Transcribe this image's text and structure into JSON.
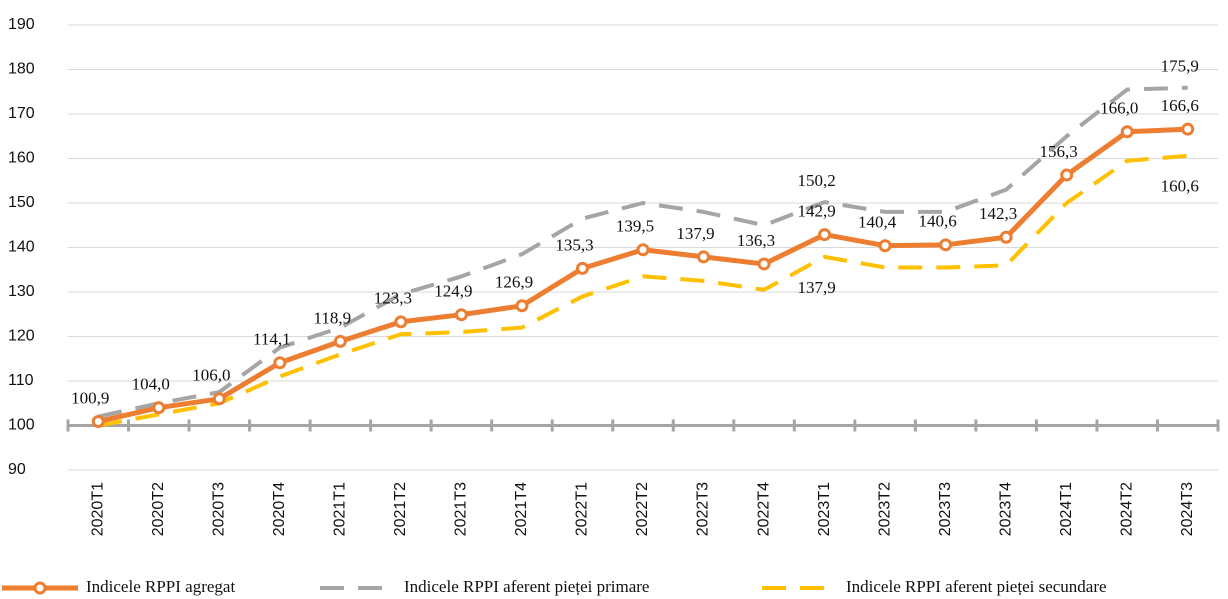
{
  "chart_data": {
    "type": "line",
    "categories": [
      "2020T1",
      "2020T2",
      "2020T3",
      "2020T4",
      "2021T1",
      "2021T2",
      "2021T3",
      "2021T4",
      "2022T1",
      "2022T2",
      "2022T3",
      "2022T4",
      "2023T1",
      "2023T2",
      "2023T3",
      "2023T4",
      "2024T1",
      "2024T2",
      "2024T3"
    ],
    "series": [
      {
        "name": "Indicele RPPI agregat",
        "color": "#ed7d31",
        "line_style": "solid",
        "marker": true,
        "values": [
          100.9,
          104.0,
          106.0,
          114.1,
          118.9,
          123.3,
          124.9,
          126.9,
          135.3,
          139.5,
          137.9,
          136.3,
          142.9,
          140.4,
          140.6,
          142.3,
          156.3,
          166.0,
          166.6
        ],
        "value_labels": [
          "100,9",
          "104,0",
          "106,0",
          "114,1",
          "118,9",
          "123,3",
          "124,9",
          "126,9",
          "135,3",
          "139,5",
          "137,9",
          "136,3",
          "142,9",
          "140,4",
          "140,6",
          "142,3",
          "156,3",
          "166,0",
          "166,6"
        ]
      },
      {
        "name": "Indicele RPPI aferent pieței primare",
        "color": "#a5a5a5",
        "line_style": "dashed",
        "marker": false,
        "values": [
          102,
          105,
          107.5,
          117.5,
          122,
          129.5,
          133.5,
          138.5,
          146.5,
          150,
          148,
          145,
          150.2,
          148,
          148,
          153,
          165,
          175.5,
          175.9
        ],
        "value_labels": [
          null,
          null,
          null,
          null,
          null,
          null,
          null,
          null,
          null,
          null,
          null,
          null,
          "150,2",
          null,
          null,
          null,
          null,
          null,
          "175,9"
        ]
      },
      {
        "name": "Indicele RPPI aferent pieței secundare",
        "color": "#ffc000",
        "line_style": "dashed",
        "marker": false,
        "values": [
          100,
          102.5,
          105,
          111,
          116,
          120.5,
          121,
          122,
          129,
          133.5,
          132.5,
          130.5,
          137.9,
          135.5,
          135.5,
          136,
          150,
          159.5,
          160.6
        ],
        "value_labels": [
          null,
          null,
          null,
          null,
          null,
          null,
          null,
          null,
          null,
          null,
          null,
          null,
          "137,9",
          null,
          null,
          null,
          null,
          null,
          "160,6"
        ]
      }
    ],
    "ylim": [
      90,
      190
    ],
    "yticks": [
      90,
      100,
      110,
      120,
      130,
      140,
      150,
      160,
      170,
      180,
      190
    ],
    "xaxis_crosses": 100,
    "grid": true
  }
}
